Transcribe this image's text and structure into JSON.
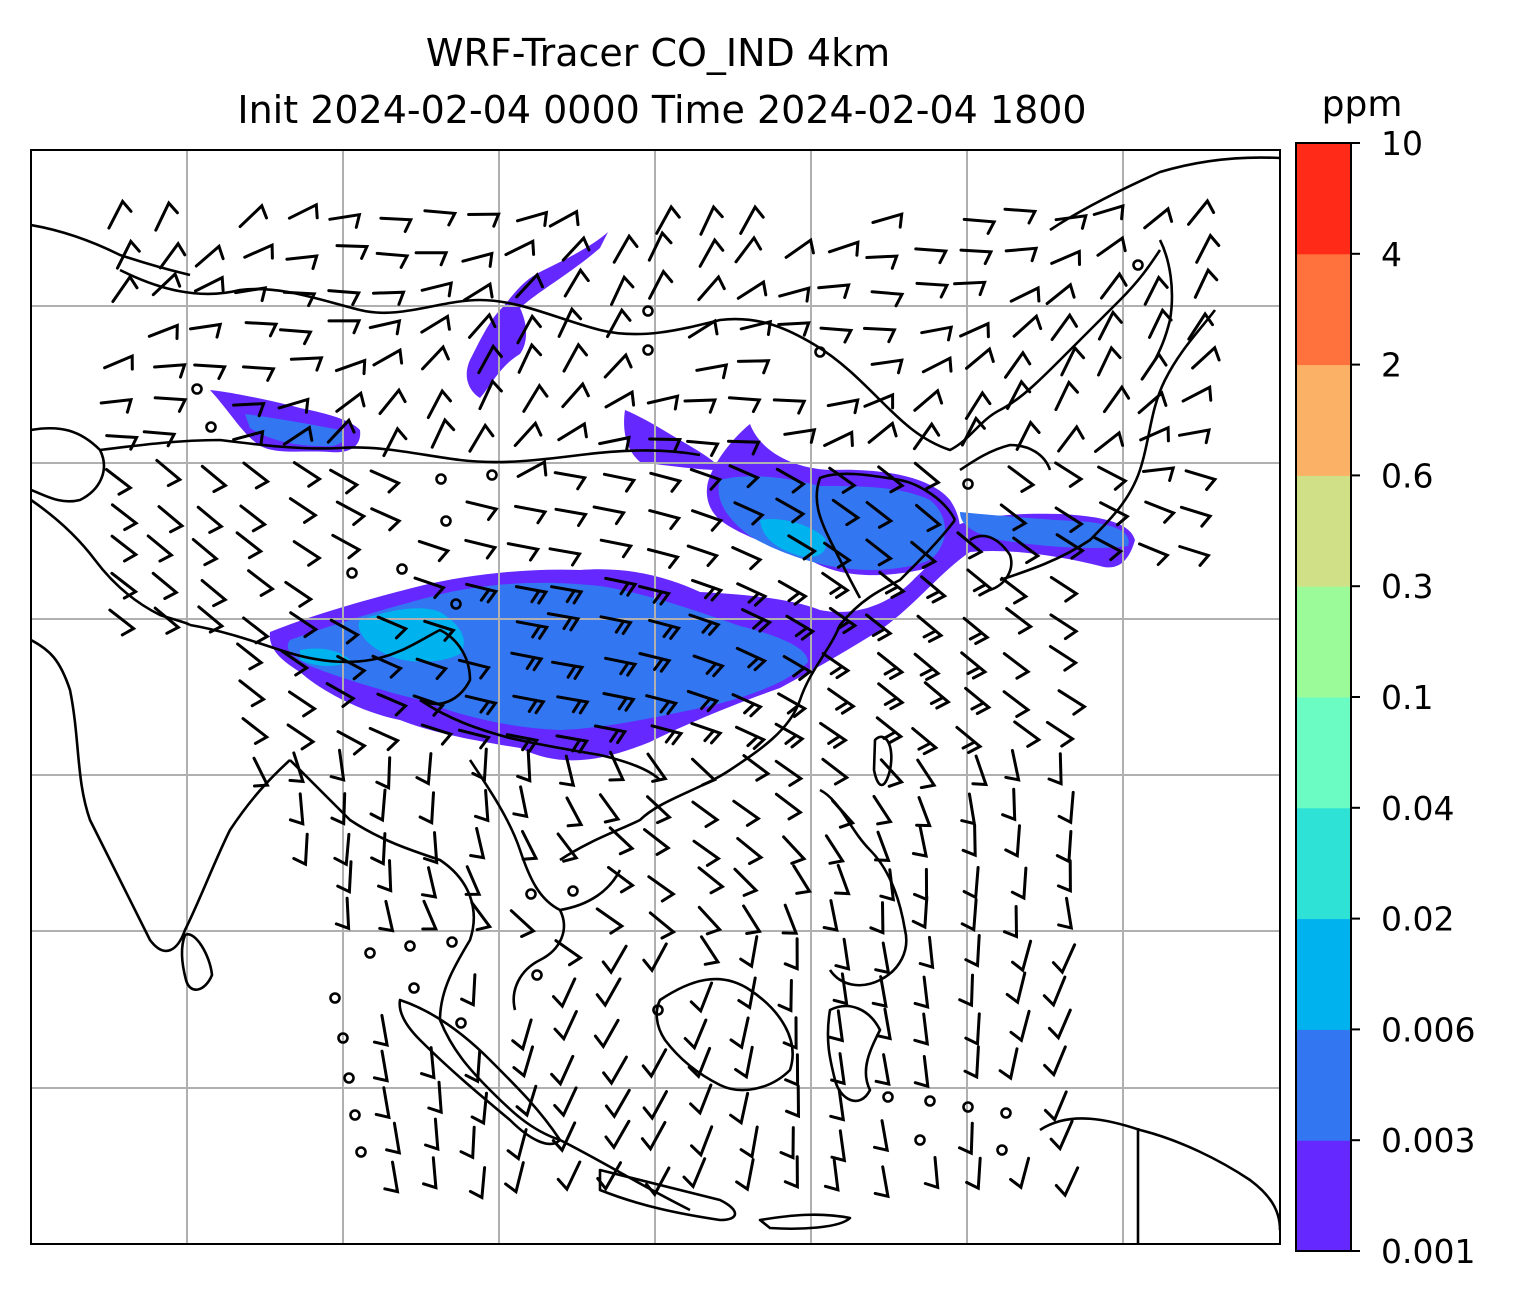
{
  "title": {
    "line1": "WRF-Tracer CO_IND 4km",
    "line2": "Init 2024-02-04 0000 Time 2024-02-04 1800"
  },
  "colorbar": {
    "unit": "ppm",
    "bins": [
      {
        "label": "0.001",
        "color": "#6528ff"
      },
      {
        "label": "0.003",
        "color": "#3276f2"
      },
      {
        "label": "0.006",
        "color": "#00b2ee"
      },
      {
        "label": "0.02",
        "color": "#2fe2d6"
      },
      {
        "label": "0.04",
        "color": "#6afcc3"
      },
      {
        "label": "0.1",
        "color": "#9bfb99"
      },
      {
        "label": "0.3",
        "color": "#cfe087"
      },
      {
        "label": "0.6",
        "color": "#fcb266"
      },
      {
        "label": "2",
        "color": "#ff713d"
      },
      {
        "label": "4",
        "color": "#ff2a18"
      }
    ],
    "top_label": "10"
  },
  "map": {
    "grid": "on",
    "layers": [
      "coastlines",
      "tracer-concentration",
      "wind-barbs"
    ]
  }
}
